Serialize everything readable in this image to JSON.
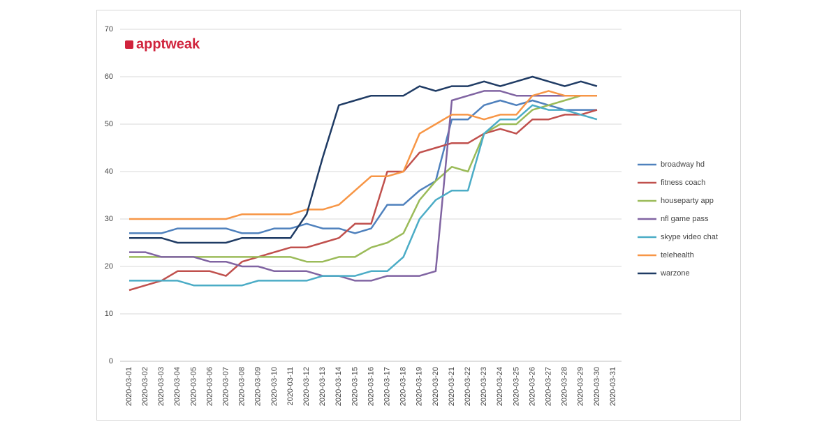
{
  "chart_data": {
    "type": "line",
    "logo": "apptweak",
    "categories": [
      "2020-03-01",
      "2020-03-02",
      "2020-03-03",
      "2020-03-04",
      "2020-03-05",
      "2020-03-06",
      "2020-03-07",
      "2020-03-08",
      "2020-03-09",
      "2020-03-10",
      "2020-03-11",
      "2020-03-12",
      "2020-03-13",
      "2020-03-14",
      "2020-03-15",
      "2020-03-16",
      "2020-03-17",
      "2020-03-18",
      "2020-03-19",
      "2020-03-20",
      "2020-03-21",
      "2020-03-22",
      "2020-03-23",
      "2020-03-24",
      "2020-03-25",
      "2020-03-26",
      "2020-03-27",
      "2020-03-28",
      "2020-03-29",
      "2020-03-30",
      "2020-03-31"
    ],
    "series": [
      {
        "name": "broadway hd",
        "color": "#4f81bd",
        "values": [
          27,
          27,
          27,
          28,
          28,
          28,
          28,
          27,
          27,
          28,
          28,
          29,
          28,
          28,
          27,
          28,
          33,
          33,
          36,
          38,
          51,
          51,
          54,
          55,
          54,
          55,
          54,
          53,
          53,
          53,
          null
        ]
      },
      {
        "name": "fitness coach",
        "color": "#c0504d",
        "values": [
          15,
          16,
          17,
          19,
          19,
          19,
          18,
          21,
          22,
          23,
          24,
          24,
          25,
          26,
          29,
          29,
          40,
          40,
          44,
          45,
          46,
          46,
          48,
          49,
          48,
          51,
          51,
          52,
          52,
          53,
          null
        ]
      },
      {
        "name": "houseparty app",
        "color": "#9bbb59",
        "values": [
          22,
          22,
          22,
          22,
          22,
          22,
          22,
          22,
          22,
          22,
          22,
          21,
          21,
          22,
          22,
          24,
          25,
          27,
          34,
          38,
          41,
          40,
          48,
          50,
          50,
          53,
          54,
          55,
          56,
          56,
          null
        ]
      },
      {
        "name": "nfl game pass",
        "color": "#8064a2",
        "values": [
          23,
          23,
          22,
          22,
          22,
          21,
          21,
          20,
          20,
          19,
          19,
          19,
          18,
          18,
          17,
          17,
          18,
          18,
          18,
          19,
          55,
          56,
          57,
          57,
          56,
          56,
          56,
          56,
          56,
          56,
          null
        ]
      },
      {
        "name": "skype video chat",
        "color": "#4bacc6",
        "values": [
          17,
          17,
          17,
          17,
          16,
          16,
          16,
          16,
          17,
          17,
          17,
          17,
          18,
          18,
          18,
          19,
          19,
          22,
          30,
          34,
          36,
          36,
          48,
          51,
          51,
          54,
          53,
          53,
          52,
          51,
          null
        ]
      },
      {
        "name": "telehealth",
        "color": "#f79646",
        "values": [
          30,
          30,
          30,
          30,
          30,
          30,
          30,
          31,
          31,
          31,
          31,
          32,
          32,
          33,
          36,
          39,
          39,
          40,
          48,
          50,
          52,
          52,
          51,
          52,
          52,
          56,
          57,
          56,
          56,
          56,
          null
        ]
      },
      {
        "name": "warzone",
        "color": "#1f3b64",
        "values": [
          26,
          26,
          26,
          25,
          25,
          25,
          25,
          26,
          26,
          26,
          26,
          31,
          43,
          54,
          55,
          56,
          56,
          56,
          58,
          57,
          58,
          58,
          59,
          58,
          59,
          60,
          59,
          58,
          59,
          58,
          null
        ]
      }
    ],
    "ylim": [
      0,
      70
    ],
    "yticks": [
      0,
      10,
      20,
      30,
      40,
      50,
      60,
      70
    ],
    "grid": true,
    "legend": "right"
  }
}
